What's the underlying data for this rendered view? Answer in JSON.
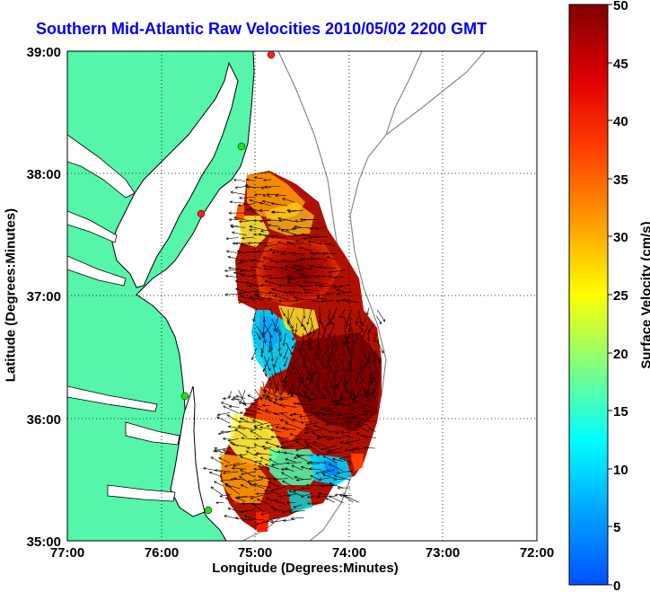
{
  "title": "Southern Mid-Atlantic Raw Velocities 2010/05/02 2200 GMT",
  "x_axis": {
    "label": "Longitude (Degrees:Minutes)",
    "ticks": [
      "77:00",
      "76:00",
      "75:00",
      "74:00",
      "73:00",
      "72:00"
    ]
  },
  "y_axis": {
    "label": "Latitude (Degrees:Minutes)",
    "ticks": [
      "39:00",
      "38:00",
      "37:00",
      "36:00",
      "35:00"
    ]
  },
  "colorbar": {
    "label": "Surface Velocity (cm/s)",
    "ticks": [
      "50",
      "45",
      "40",
      "35",
      "30",
      "25",
      "20",
      "15",
      "10",
      "5",
      "0"
    ],
    "range": [
      0,
      50
    ],
    "colormap": "jet"
  },
  "map": {
    "lon_range": [
      -77,
      -72
    ],
    "lat_range": [
      35,
      39
    ],
    "land_color": "#55f5aa",
    "coast_color": "#000000",
    "bathymetry_color": "#888888",
    "grid": "dotted",
    "station_markers": [
      {
        "lon": -74.88,
        "lat": 38.95,
        "color": "#ff2020"
      },
      {
        "lon": -75.1,
        "lat": 38.22,
        "color": "#22dd22"
      },
      {
        "lon": -75.55,
        "lat": 37.65,
        "color": "#ff2020"
      },
      {
        "lon": -75.72,
        "lat": 36.18,
        "color": "#22dd22"
      },
      {
        "lon": -75.47,
        "lat": 35.28,
        "color": "#22dd22"
      }
    ]
  }
}
